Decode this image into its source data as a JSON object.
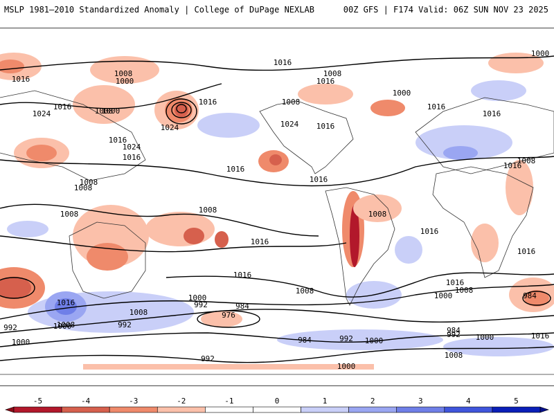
{
  "header": {
    "left_title": "MSLP 1981–2010 Standardized Anomaly | College of DuPage NEXLAB",
    "right_title": "00Z GFS | F174 Valid: 06Z SUN NOV 23 2025"
  },
  "map": {
    "isobar_labels": [
      {
        "text": "1016"
      },
      {
        "text": "1008"
      },
      {
        "text": "1008"
      },
      {
        "text": "1000"
      },
      {
        "text": "1016"
      },
      {
        "text": "1008"
      },
      {
        "text": "1016"
      },
      {
        "text": "1000"
      },
      {
        "text": "1008"
      },
      {
        "text": "1024"
      },
      {
        "text": "1016"
      },
      {
        "text": "1024"
      },
      {
        "text": "1016"
      },
      {
        "text": "1016"
      },
      {
        "text": "1024"
      },
      {
        "text": "1024"
      },
      {
        "text": "1016"
      },
      {
        "text": "1016"
      },
      {
        "text": "1016"
      },
      {
        "text": "1008"
      },
      {
        "text": "1008"
      },
      {
        "text": "1008"
      },
      {
        "text": "1008"
      },
      {
        "text": "1016"
      },
      {
        "text": "1008"
      },
      {
        "text": "1016"
      },
      {
        "text": "1016"
      },
      {
        "text": "1016"
      },
      {
        "text": "1008"
      },
      {
        "text": "1016"
      },
      {
        "text": "1000"
      },
      {
        "text": "992"
      },
      {
        "text": "984"
      },
      {
        "text": "976"
      },
      {
        "text": "984"
      },
      {
        "text": "992"
      },
      {
        "text": "1000"
      },
      {
        "text": "1008"
      },
      {
        "text": "1016"
      },
      {
        "text": "1008"
      },
      {
        "text": "1000"
      },
      {
        "text": "992"
      },
      {
        "text": "1000"
      },
      {
        "text": "992"
      },
      {
        "text": "992"
      },
      {
        "text": "1000"
      },
      {
        "text": "1008"
      },
      {
        "text": "984"
      },
      {
        "text": "992"
      },
      {
        "text": "1000"
      },
      {
        "text": "1016"
      },
      {
        "text": "1008"
      },
      {
        "text": "1000"
      },
      {
        "text": "984"
      },
      {
        "text": "1016"
      },
      {
        "text": "1000"
      },
      {
        "text": "1016"
      },
      {
        "text": "1000"
      },
      {
        "text": "1016"
      },
      {
        "text": "1016"
      },
      {
        "text": "1008"
      }
    ]
  },
  "colorbar": {
    "ticks": [
      "-5",
      "-4",
      "-3",
      "-2",
      "-1",
      "0",
      "1",
      "2",
      "3",
      "4",
      "5"
    ],
    "colors": [
      "#b2182b",
      "#d6604d",
      "#ef8a6b",
      "#fbc0aa",
      "#ffffff",
      "#ffffff",
      "#c9cff8",
      "#9aa6f2",
      "#6f7fe8",
      "#3f55dc",
      "#0a1fb8"
    ],
    "neg_end": "#8a0c18",
    "pos_end": "#050f8a"
  }
}
